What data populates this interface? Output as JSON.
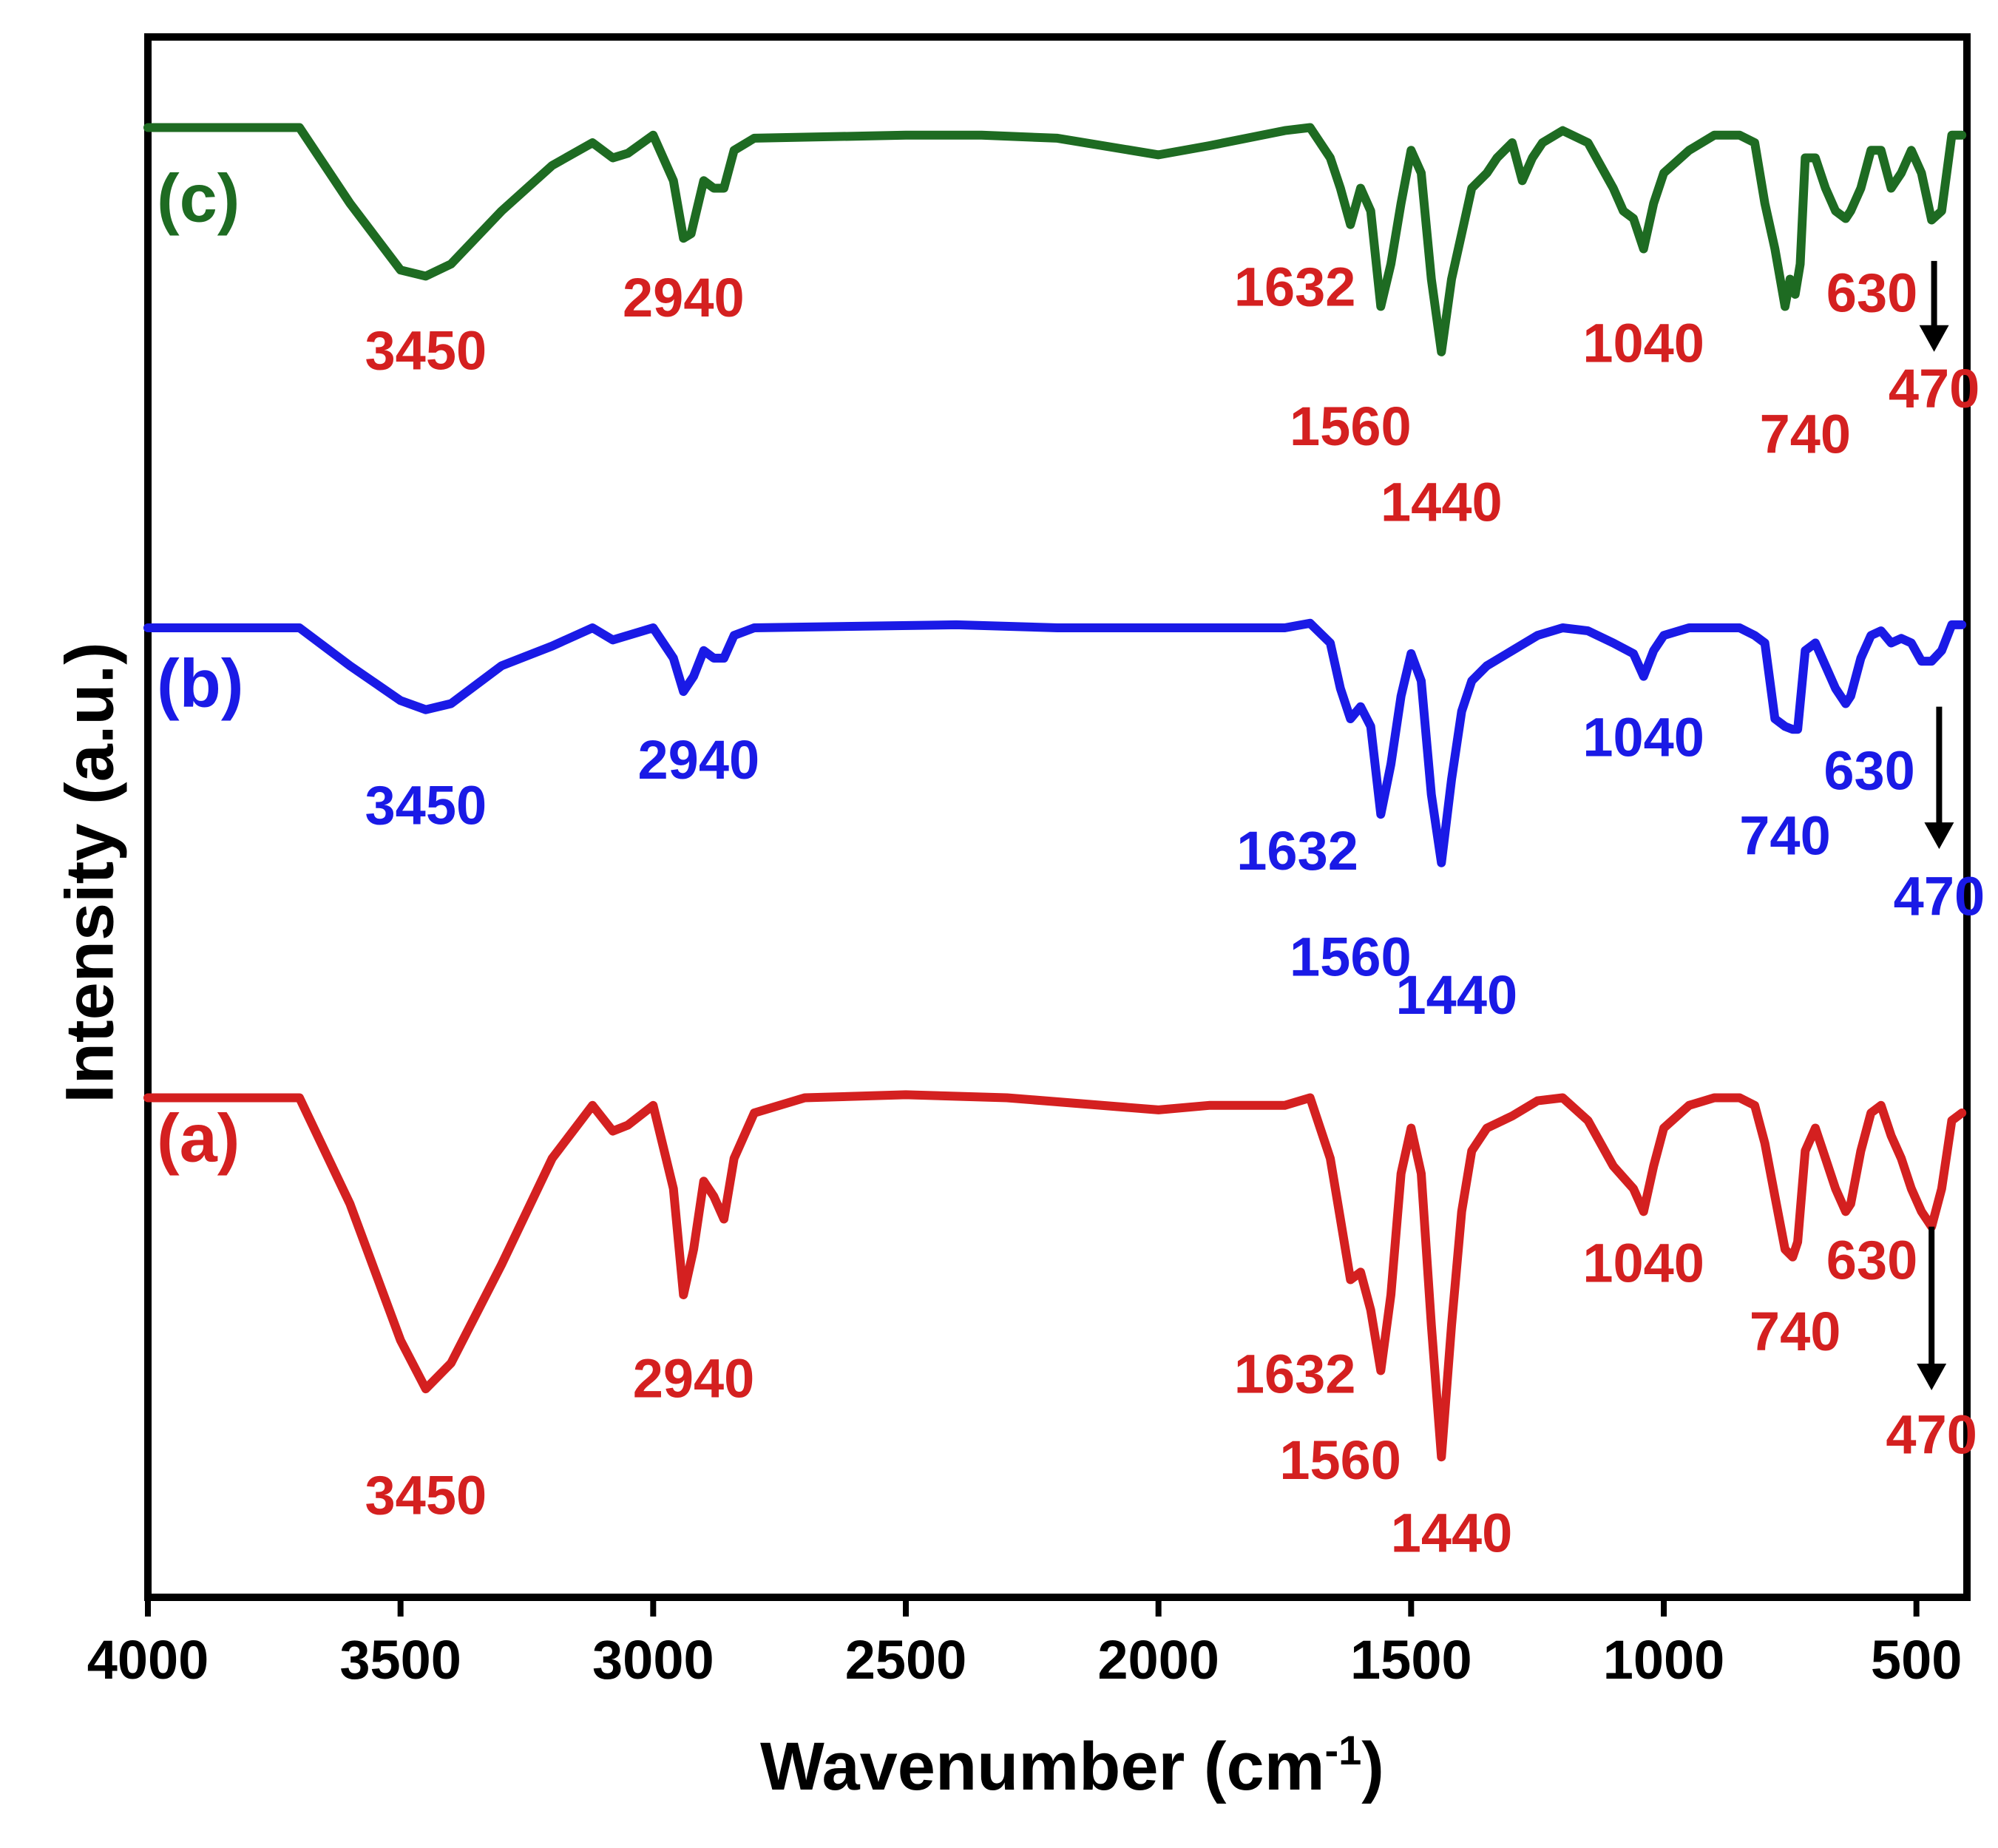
{
  "chart_data": {
    "type": "line",
    "title": "",
    "xlabel": "Wavenumber (cm",
    "xlabel_sup": "-1",
    "xlabel_close": ")",
    "ylabel": "Intensity (a.u.)",
    "xlim": [
      4000,
      400
    ],
    "ylim": [
      0,
      1
    ],
    "grid": false,
    "legend": "none",
    "x_ticks": [
      {
        "value": 4000,
        "label": "4000"
      },
      {
        "value": 3500,
        "label": "3500"
      },
      {
        "value": 3000,
        "label": "3000"
      },
      {
        "value": 2500,
        "label": "2500"
      },
      {
        "value": 2000,
        "label": "2000"
      },
      {
        "value": 1500,
        "label": "1500"
      },
      {
        "value": 1000,
        "label": "1000"
      },
      {
        "value": 500,
        "label": "500"
      }
    ],
    "series": [
      {
        "name": "(c)",
        "tag": "(c)",
        "color": "#1e6b22",
        "points": [
          [
            4000,
            0.95
          ],
          [
            3700,
            0.95
          ],
          [
            3600,
            0.9
          ],
          [
            3500,
            0.856
          ],
          [
            3450,
            0.852
          ],
          [
            3400,
            0.86
          ],
          [
            3300,
            0.895
          ],
          [
            3200,
            0.925
          ],
          [
            3120,
            0.94
          ],
          [
            3080,
            0.93
          ],
          [
            3050,
            0.933
          ],
          [
            3000,
            0.945
          ],
          [
            2960,
            0.915
          ],
          [
            2940,
            0.877
          ],
          [
            2925,
            0.88
          ],
          [
            2900,
            0.915
          ],
          [
            2880,
            0.91
          ],
          [
            2860,
            0.91
          ],
          [
            2840,
            0.935
          ],
          [
            2800,
            0.943
          ],
          [
            2500,
            0.945
          ],
          [
            2350,
            0.945
          ],
          [
            2200,
            0.943
          ],
          [
            2000,
            0.932
          ],
          [
            1900,
            0.938
          ],
          [
            1750,
            0.948
          ],
          [
            1700,
            0.95
          ],
          [
            1660,
            0.93
          ],
          [
            1640,
            0.91
          ],
          [
            1620,
            0.886
          ],
          [
            1600,
            0.91
          ],
          [
            1580,
            0.895
          ],
          [
            1560,
            0.832
          ],
          [
            1540,
            0.86
          ],
          [
            1520,
            0.9
          ],
          [
            1500,
            0.935
          ],
          [
            1480,
            0.92
          ],
          [
            1460,
            0.85
          ],
          [
            1440,
            0.802
          ],
          [
            1420,
            0.85
          ],
          [
            1400,
            0.88
          ],
          [
            1380,
            0.91
          ],
          [
            1350,
            0.92
          ],
          [
            1330,
            0.93
          ],
          [
            1300,
            0.94
          ],
          [
            1280,
            0.915
          ],
          [
            1260,
            0.93
          ],
          [
            1240,
            0.94
          ],
          [
            1200,
            0.948
          ],
          [
            1150,
            0.94
          ],
          [
            1100,
            0.91
          ],
          [
            1080,
            0.895
          ],
          [
            1060,
            0.89
          ],
          [
            1040,
            0.87
          ],
          [
            1020,
            0.9
          ],
          [
            1000,
            0.92
          ],
          [
            950,
            0.935
          ],
          [
            900,
            0.945
          ],
          [
            850,
            0.945
          ],
          [
            820,
            0.94
          ],
          [
            800,
            0.9
          ],
          [
            780,
            0.87
          ],
          [
            760,
            0.832
          ],
          [
            750,
            0.85
          ],
          [
            740,
            0.84
          ],
          [
            730,
            0.86
          ],
          [
            720,
            0.93
          ],
          [
            700,
            0.93
          ],
          [
            680,
            0.91
          ],
          [
            660,
            0.895
          ],
          [
            640,
            0.89
          ],
          [
            630,
            0.895
          ],
          [
            610,
            0.91
          ],
          [
            590,
            0.935
          ],
          [
            570,
            0.935
          ],
          [
            550,
            0.91
          ],
          [
            530,
            0.92
          ],
          [
            510,
            0.935
          ],
          [
            490,
            0.92
          ],
          [
            470,
            0.889
          ],
          [
            450,
            0.895
          ],
          [
            430,
            0.945
          ],
          [
            410,
            0.945
          ]
        ],
        "tag_value_y": 0.9
      },
      {
        "name": "(b)",
        "tag": "(b)",
        "color": "#1a1ae6",
        "points": [
          [
            4000,
            0.62
          ],
          [
            3700,
            0.62
          ],
          [
            3600,
            0.595
          ],
          [
            3500,
            0.572
          ],
          [
            3450,
            0.566
          ],
          [
            3400,
            0.57
          ],
          [
            3300,
            0.595
          ],
          [
            3200,
            0.608
          ],
          [
            3120,
            0.62
          ],
          [
            3080,
            0.612
          ],
          [
            3050,
            0.615
          ],
          [
            3000,
            0.62
          ],
          [
            2960,
            0.6
          ],
          [
            2940,
            0.578
          ],
          [
            2920,
            0.588
          ],
          [
            2900,
            0.605
          ],
          [
            2880,
            0.6
          ],
          [
            2860,
            0.6
          ],
          [
            2840,
            0.615
          ],
          [
            2800,
            0.62
          ],
          [
            2400,
            0.622
          ],
          [
            2200,
            0.62
          ],
          [
            1900,
            0.62
          ],
          [
            1750,
            0.62
          ],
          [
            1700,
            0.623
          ],
          [
            1660,
            0.61
          ],
          [
            1640,
            0.58
          ],
          [
            1620,
            0.56
          ],
          [
            1600,
            0.568
          ],
          [
            1580,
            0.555
          ],
          [
            1560,
            0.497
          ],
          [
            1540,
            0.53
          ],
          [
            1520,
            0.575
          ],
          [
            1500,
            0.603
          ],
          [
            1480,
            0.585
          ],
          [
            1460,
            0.51
          ],
          [
            1440,
            0.465
          ],
          [
            1420,
            0.52
          ],
          [
            1400,
            0.565
          ],
          [
            1380,
            0.585
          ],
          [
            1350,
            0.595
          ],
          [
            1300,
            0.605
          ],
          [
            1250,
            0.615
          ],
          [
            1200,
            0.62
          ],
          [
            1150,
            0.618
          ],
          [
            1100,
            0.61
          ],
          [
            1060,
            0.603
          ],
          [
            1040,
            0.588
          ],
          [
            1020,
            0.605
          ],
          [
            1000,
            0.615
          ],
          [
            950,
            0.62
          ],
          [
            900,
            0.62
          ],
          [
            850,
            0.62
          ],
          [
            820,
            0.615
          ],
          [
            800,
            0.61
          ],
          [
            780,
            0.56
          ],
          [
            760,
            0.555
          ],
          [
            745,
            0.553
          ],
          [
            735,
            0.553
          ],
          [
            720,
            0.605
          ],
          [
            700,
            0.61
          ],
          [
            680,
            0.595
          ],
          [
            660,
            0.58
          ],
          [
            640,
            0.57
          ],
          [
            630,
            0.575
          ],
          [
            610,
            0.6
          ],
          [
            590,
            0.615
          ],
          [
            570,
            0.618
          ],
          [
            550,
            0.61
          ],
          [
            530,
            0.613
          ],
          [
            510,
            0.61
          ],
          [
            490,
            0.598
          ],
          [
            470,
            0.598
          ],
          [
            450,
            0.605
          ],
          [
            430,
            0.622
          ],
          [
            410,
            0.622
          ]
        ],
        "tag_value_y": 0.58
      },
      {
        "name": "(a)",
        "tag": "(a)",
        "color": "#d42020",
        "points": [
          [
            4000,
            0.31
          ],
          [
            3700,
            0.31
          ],
          [
            3600,
            0.24
          ],
          [
            3500,
            0.15
          ],
          [
            3450,
            0.118
          ],
          [
            3400,
            0.135
          ],
          [
            3300,
            0.2
          ],
          [
            3200,
            0.27
          ],
          [
            3120,
            0.305
          ],
          [
            3080,
            0.288
          ],
          [
            3050,
            0.292
          ],
          [
            3000,
            0.305
          ],
          [
            2960,
            0.25
          ],
          [
            2940,
            0.18
          ],
          [
            2920,
            0.21
          ],
          [
            2900,
            0.255
          ],
          [
            2880,
            0.245
          ],
          [
            2860,
            0.23
          ],
          [
            2840,
            0.27
          ],
          [
            2800,
            0.3
          ],
          [
            2700,
            0.31
          ],
          [
            2500,
            0.312
          ],
          [
            2300,
            0.31
          ],
          [
            2000,
            0.302
          ],
          [
            1900,
            0.305
          ],
          [
            1750,
            0.305
          ],
          [
            1700,
            0.31
          ],
          [
            1660,
            0.27
          ],
          [
            1640,
            0.23
          ],
          [
            1620,
            0.19
          ],
          [
            1600,
            0.195
          ],
          [
            1580,
            0.17
          ],
          [
            1560,
            0.13
          ],
          [
            1540,
            0.18
          ],
          [
            1520,
            0.26
          ],
          [
            1500,
            0.29
          ],
          [
            1480,
            0.26
          ],
          [
            1460,
            0.16
          ],
          [
            1440,
            0.073
          ],
          [
            1420,
            0.16
          ],
          [
            1400,
            0.235
          ],
          [
            1380,
            0.275
          ],
          [
            1350,
            0.29
          ],
          [
            1300,
            0.298
          ],
          [
            1250,
            0.308
          ],
          [
            1200,
            0.31
          ],
          [
            1150,
            0.295
          ],
          [
            1100,
            0.265
          ],
          [
            1060,
            0.25
          ],
          [
            1040,
            0.235
          ],
          [
            1020,
            0.265
          ],
          [
            1000,
            0.29
          ],
          [
            950,
            0.305
          ],
          [
            900,
            0.31
          ],
          [
            850,
            0.31
          ],
          [
            820,
            0.305
          ],
          [
            800,
            0.28
          ],
          [
            780,
            0.245
          ],
          [
            760,
            0.21
          ],
          [
            745,
            0.205
          ],
          [
            735,
            0.215
          ],
          [
            720,
            0.275
          ],
          [
            700,
            0.29
          ],
          [
            680,
            0.27
          ],
          [
            660,
            0.25
          ],
          [
            640,
            0.235
          ],
          [
            630,
            0.24
          ],
          [
            610,
            0.275
          ],
          [
            590,
            0.3
          ],
          [
            570,
            0.305
          ],
          [
            550,
            0.285
          ],
          [
            530,
            0.27
          ],
          [
            510,
            0.25
          ],
          [
            490,
            0.235
          ],
          [
            470,
            0.225
          ],
          [
            450,
            0.25
          ],
          [
            430,
            0.295
          ],
          [
            410,
            0.3
          ]
        ],
        "tag_value_y": 0.28
      }
    ],
    "annotations": [
      {
        "series": "(c)",
        "text": "3450",
        "x": 3450,
        "y": 0.8,
        "color": "#d42020",
        "arrow": false
      },
      {
        "series": "(c)",
        "text": "2940",
        "x": 2940,
        "y": 0.835,
        "color": "#d42020",
        "arrow": false
      },
      {
        "series": "(c)",
        "text": "1632",
        "x": 1730,
        "y": 0.842,
        "color": "#d42020",
        "arrow": false
      },
      {
        "series": "(c)",
        "text": "1560",
        "x": 1620,
        "y": 0.75,
        "color": "#d42020",
        "arrow": false
      },
      {
        "series": "(c)",
        "text": "1440",
        "x": 1440,
        "y": 0.7,
        "color": "#d42020",
        "arrow": false
      },
      {
        "series": "(c)",
        "text": "1040",
        "x": 1040,
        "y": 0.805,
        "color": "#d42020",
        "arrow": false
      },
      {
        "series": "(c)",
        "text": "740",
        "x": 720,
        "y": 0.745,
        "color": "#d42020",
        "arrow": false
      },
      {
        "series": "(c)",
        "text": "630",
        "x": 588,
        "y": 0.838,
        "color": "#d42020",
        "arrow": false
      },
      {
        "series": "(c)",
        "text": "470",
        "x": 465,
        "y": 0.775,
        "color": "#d42020",
        "arrow": true,
        "arrow_from": 0.862,
        "arrow_to": 0.805
      },
      {
        "series": "(b)",
        "text": "3450",
        "x": 3450,
        "y": 0.5,
        "color": "#1a1ae6",
        "arrow": false
      },
      {
        "series": "(b)",
        "text": "2940",
        "x": 2910,
        "y": 0.53,
        "color": "#1a1ae6",
        "arrow": false
      },
      {
        "series": "(b)",
        "text": "1632",
        "x": 1725,
        "y": 0.47,
        "color": "#1a1ae6",
        "arrow": false
      },
      {
        "series": "(b)",
        "text": "1560",
        "x": 1620,
        "y": 0.4,
        "color": "#1a1ae6",
        "arrow": false
      },
      {
        "series": "(b)",
        "text": "1440",
        "x": 1410,
        "y": 0.375,
        "color": "#1a1ae6",
        "arrow": false
      },
      {
        "series": "(b)",
        "text": "1040",
        "x": 1040,
        "y": 0.545,
        "color": "#1a1ae6",
        "arrow": false
      },
      {
        "series": "(b)",
        "text": "740",
        "x": 760,
        "y": 0.48,
        "color": "#1a1ae6",
        "arrow": false
      },
      {
        "series": "(b)",
        "text": "630",
        "x": 593,
        "y": 0.523,
        "color": "#1a1ae6",
        "arrow": false
      },
      {
        "series": "(b)",
        "text": "470",
        "x": 455,
        "y": 0.44,
        "color": "#1a1ae6",
        "arrow": true,
        "arrow_from": 0.568,
        "arrow_to": 0.477
      },
      {
        "series": "(a)",
        "text": "3450",
        "x": 3450,
        "y": 0.045,
        "color": "#d42020",
        "arrow": false
      },
      {
        "series": "(a)",
        "text": "2940",
        "x": 2920,
        "y": 0.122,
        "color": "#d42020",
        "arrow": false
      },
      {
        "series": "(a)",
        "text": "1632",
        "x": 1730,
        "y": 0.125,
        "color": "#d42020",
        "arrow": false
      },
      {
        "series": "(a)",
        "text": "1560",
        "x": 1640,
        "y": 0.068,
        "color": "#d42020",
        "arrow": false
      },
      {
        "series": "(a)",
        "text": "1440",
        "x": 1420,
        "y": 0.02,
        "color": "#d42020",
        "arrow": false
      },
      {
        "series": "(a)",
        "text": "1040",
        "x": 1040,
        "y": 0.198,
        "color": "#d42020",
        "arrow": false
      },
      {
        "series": "(a)",
        "text": "740",
        "x": 740,
        "y": 0.153,
        "color": "#d42020",
        "arrow": false
      },
      {
        "series": "(a)",
        "text": "630",
        "x": 588,
        "y": 0.2,
        "color": "#d42020",
        "arrow": false
      },
      {
        "series": "(a)",
        "text": "470",
        "x": 470,
        "y": 0.085,
        "color": "#d42020",
        "arrow": true,
        "arrow_from": 0.225,
        "arrow_to": 0.12
      }
    ]
  }
}
